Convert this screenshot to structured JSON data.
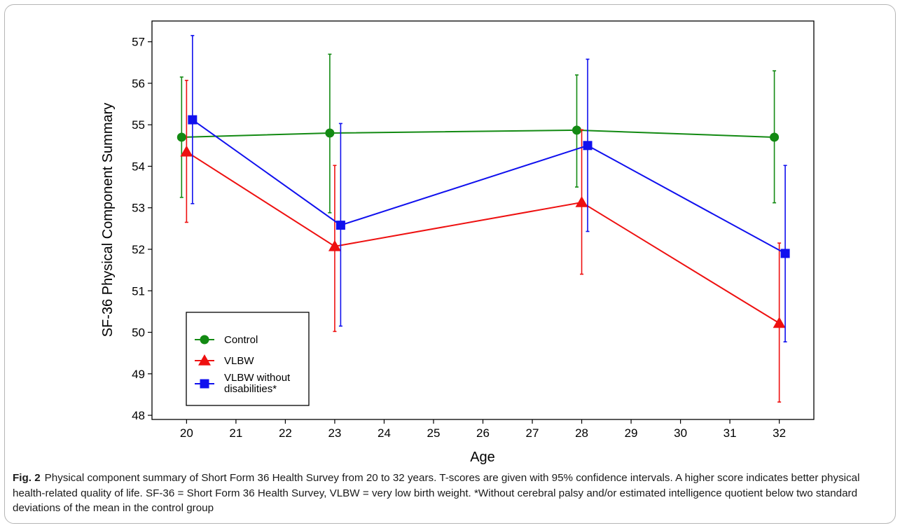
{
  "chart_data": {
    "type": "line",
    "xlabel": "Age",
    "ylabel": "SF-36 Physical Component Summary",
    "xlim": [
      19.3,
      32.7
    ],
    "ylim": [
      47.9,
      57.5
    ],
    "xticks": [
      "20",
      "21",
      "22",
      "23",
      "24",
      "25",
      "26",
      "27",
      "28",
      "29",
      "30",
      "31",
      "32"
    ],
    "yticks": [
      "48",
      "49",
      "50",
      "51",
      "52",
      "53",
      "54",
      "55",
      "56",
      "57"
    ],
    "grid": false,
    "legend_position": "bottom-left",
    "series": [
      {
        "name": "Control",
        "color": "#138a13",
        "marker": "circle",
        "x": [
          19.9,
          22.9,
          27.9,
          31.9
        ],
        "y": [
          54.7,
          54.8,
          54.87,
          54.7
        ],
        "lower": [
          53.25,
          52.88,
          53.5,
          53.12
        ],
        "upper": [
          56.15,
          56.7,
          56.2,
          56.3
        ]
      },
      {
        "name": "VLBW",
        "color": "#ee1010",
        "marker": "triangle",
        "x": [
          20.0,
          23.0,
          28.0,
          32.0
        ],
        "y": [
          54.35,
          52.07,
          53.13,
          50.22
        ],
        "lower": [
          52.65,
          50.02,
          51.4,
          48.32
        ],
        "upper": [
          56.07,
          54.02,
          54.88,
          52.15
        ]
      },
      {
        "name": "VLBW without disabilities*",
        "label_lines": [
          "VLBW without",
          "disabilities*"
        ],
        "color": "#1010ee",
        "marker": "square",
        "x": [
          20.12,
          23.12,
          28.12,
          32.12
        ],
        "y": [
          55.12,
          52.58,
          54.5,
          51.9
        ],
        "lower": [
          53.1,
          50.15,
          52.43,
          49.77
        ],
        "upper": [
          57.15,
          55.03,
          56.58,
          54.02
        ]
      }
    ]
  },
  "caption": {
    "label": "Fig. 2",
    "text": "Physical component summary of Short Form 36 Health Survey from 20 to 32 years.  T-scores are given with 95% confidence intervals. A higher score indicates better physical health-related quality of life. SF-36 = Short Form 36 Health Survey, VLBW = very low birth weight. *Without cerebral palsy and/or estimated intelligence quotient below two standard deviations of the mean in the control group"
  }
}
